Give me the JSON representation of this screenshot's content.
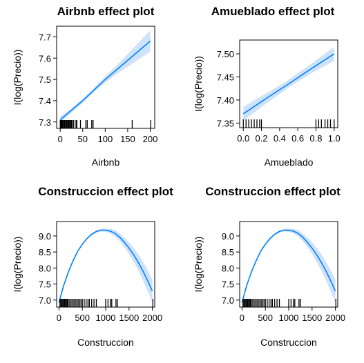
{
  "chart_data": [
    {
      "type": "line",
      "title": "Airbnb effect plot",
      "xlabel": "Airbnb",
      "ylabel": "I(log(Precio))",
      "xlim": [
        -8,
        210
      ],
      "ylim": [
        7.27,
        7.75
      ],
      "xticks": [
        0,
        50,
        100,
        150,
        200
      ],
      "xtick_labels": [
        "0",
        "50",
        "100",
        "150",
        "200"
      ],
      "yticks": [
        7.3,
        7.4,
        7.5,
        7.6,
        7.7
      ],
      "ytick_labels": [
        "7.3",
        "7.4",
        "7.5",
        "7.6",
        "7.7"
      ],
      "grid": false,
      "band_visible": true,
      "series": [
        {
          "x": [
            0,
            25,
            50,
            75,
            100,
            125,
            150,
            175,
            200
          ],
          "y": [
            7.31,
            7.355,
            7.4,
            7.45,
            7.5,
            7.545,
            7.59,
            7.635,
            7.68
          ],
          "lower": [
            7.295,
            7.345,
            7.39,
            7.44,
            7.485,
            7.525,
            7.56,
            7.595,
            7.63
          ],
          "upper": [
            7.325,
            7.365,
            7.41,
            7.46,
            7.515,
            7.565,
            7.62,
            7.675,
            7.73
          ]
        }
      ],
      "rug": [
        0,
        1,
        2,
        3,
        4,
        5,
        7,
        9,
        10,
        12,
        14,
        15,
        17,
        19,
        20,
        22,
        24,
        25,
        28,
        30,
        35,
        37,
        45,
        57,
        60,
        70,
        73,
        160,
        201
      ]
    },
    {
      "type": "line",
      "title": "Amueblado effect plot",
      "xlabel": "Amueblado",
      "ylabel": "I(log(Precio))",
      "xlim": [
        -0.04,
        1.04
      ],
      "ylim": [
        7.34,
        7.53
      ],
      "xticks": [
        0,
        0.2,
        0.4,
        0.6,
        0.8,
        1
      ],
      "xtick_labels": [
        "0.0",
        "0.2",
        "0.4",
        "0.6",
        "0.8",
        "1.0"
      ],
      "yticks": [
        7.35,
        7.4,
        7.45,
        7.5
      ],
      "ytick_labels": [
        "7.35",
        "7.40",
        "7.45",
        "7.50"
      ],
      "grid": false,
      "band_visible": true,
      "series": [
        {
          "x": [
            0,
            0.25,
            0.5,
            0.75,
            1
          ],
          "y": [
            7.37,
            7.403,
            7.435,
            7.468,
            7.5
          ],
          "lower": [
            7.355,
            7.392,
            7.427,
            7.458,
            7.485
          ],
          "upper": [
            7.385,
            7.414,
            7.444,
            7.479,
            7.515
          ]
        }
      ],
      "rug": [
        0,
        0.03,
        0.06,
        0.09,
        0.12,
        0.15,
        0.18,
        0.2,
        0.8,
        0.83,
        0.86,
        0.9,
        0.93,
        0.96,
        1
      ]
    },
    {
      "type": "line",
      "title": "Construccion effect plot",
      "xlabel": "Construccion",
      "ylabel": "I(log(Precio))",
      "xlim": [
        -50,
        2050
      ],
      "ylim": [
        6.78,
        9.45
      ],
      "xticks": [
        0,
        500,
        1000,
        1500,
        2000
      ],
      "xtick_labels": [
        "0",
        "500",
        "1000",
        "1500",
        "2000"
      ],
      "yticks": [
        7.0,
        7.5,
        8.0,
        8.5,
        9.0
      ],
      "ytick_labels": [
        "7.0",
        "7.5",
        "8.0",
        "8.5",
        "9.0"
      ],
      "grid": false,
      "band_visible": true,
      "series": [
        {
          "x": [
            0,
            100,
            200,
            300,
            400,
            500,
            600,
            700,
            800,
            900,
            1000,
            1100,
            1200,
            1300,
            1400,
            1500,
            1600,
            1700,
            1800,
            1900,
            2000
          ],
          "y": [
            6.93,
            7.45,
            7.87,
            8.22,
            8.52,
            8.74,
            8.92,
            9.05,
            9.14,
            9.18,
            9.18,
            9.15,
            9.08,
            8.96,
            8.8,
            8.62,
            8.41,
            8.17,
            7.9,
            7.6,
            7.28
          ],
          "lower": [
            6.9,
            7.43,
            7.85,
            8.2,
            8.49,
            8.71,
            8.89,
            9.02,
            9.1,
            9.14,
            9.13,
            9.08,
            8.98,
            8.84,
            8.65,
            8.44,
            8.19,
            7.91,
            7.61,
            7.27,
            6.92
          ],
          "upper": [
            6.96,
            7.47,
            7.89,
            8.24,
            8.55,
            8.77,
            8.95,
            9.08,
            9.18,
            9.22,
            9.23,
            9.22,
            9.18,
            9.08,
            8.95,
            8.8,
            8.63,
            8.43,
            8.19,
            7.93,
            7.64
          ]
        }
      ],
      "rug": [
        20,
        40,
        60,
        80,
        100,
        120,
        140,
        160,
        180,
        200,
        230,
        260,
        290,
        320,
        350,
        380,
        410,
        440,
        470,
        500,
        540,
        580,
        620,
        650,
        700,
        750,
        800,
        1000,
        1050,
        1100,
        1130,
        1220,
        1250,
        2010
      ]
    },
    {
      "type": "line",
      "title": "Construccion effect plot",
      "xlabel": "Construccion",
      "ylabel": "I(log(Precio))",
      "xlim": [
        -50,
        2050
      ],
      "ylim": [
        6.78,
        9.45
      ],
      "xticks": [
        0,
        500,
        1000,
        1500,
        2000
      ],
      "xtick_labels": [
        "0",
        "500",
        "1000",
        "1500",
        "2000"
      ],
      "yticks": [
        7.0,
        7.5,
        8.0,
        8.5,
        9.0
      ],
      "ytick_labels": [
        "7.0",
        "7.5",
        "8.0",
        "8.5",
        "9.0"
      ],
      "grid": false,
      "band_visible": true,
      "series": [
        {
          "x": [
            0,
            100,
            200,
            300,
            400,
            500,
            600,
            700,
            800,
            900,
            1000,
            1100,
            1200,
            1300,
            1400,
            1500,
            1600,
            1700,
            1800,
            1900,
            2000
          ],
          "y": [
            6.93,
            7.45,
            7.87,
            8.22,
            8.52,
            8.74,
            8.92,
            9.05,
            9.14,
            9.18,
            9.18,
            9.15,
            9.08,
            8.96,
            8.8,
            8.62,
            8.41,
            8.17,
            7.9,
            7.6,
            7.28
          ],
          "lower": [
            6.9,
            7.43,
            7.85,
            8.2,
            8.49,
            8.71,
            8.89,
            9.02,
            9.1,
            9.14,
            9.13,
            9.08,
            8.98,
            8.84,
            8.65,
            8.44,
            8.19,
            7.91,
            7.61,
            7.27,
            6.92
          ],
          "upper": [
            6.96,
            7.47,
            7.89,
            8.24,
            8.55,
            8.77,
            8.95,
            9.08,
            9.18,
            9.22,
            9.23,
            9.22,
            9.18,
            9.08,
            8.95,
            8.8,
            8.63,
            8.43,
            8.19,
            7.93,
            7.64
          ]
        }
      ],
      "rug": [
        20,
        40,
        60,
        80,
        100,
        120,
        140,
        160,
        180,
        200,
        230,
        260,
        290,
        320,
        350,
        380,
        410,
        440,
        470,
        500,
        540,
        580,
        620,
        650,
        700,
        750,
        800,
        1000,
        1050,
        1100,
        1130,
        1220,
        1250,
        2010
      ]
    }
  ],
  "colors": {
    "line": "#0080ff",
    "band": "#cfe2fb",
    "rug": "#000000",
    "frame": "#000000"
  }
}
